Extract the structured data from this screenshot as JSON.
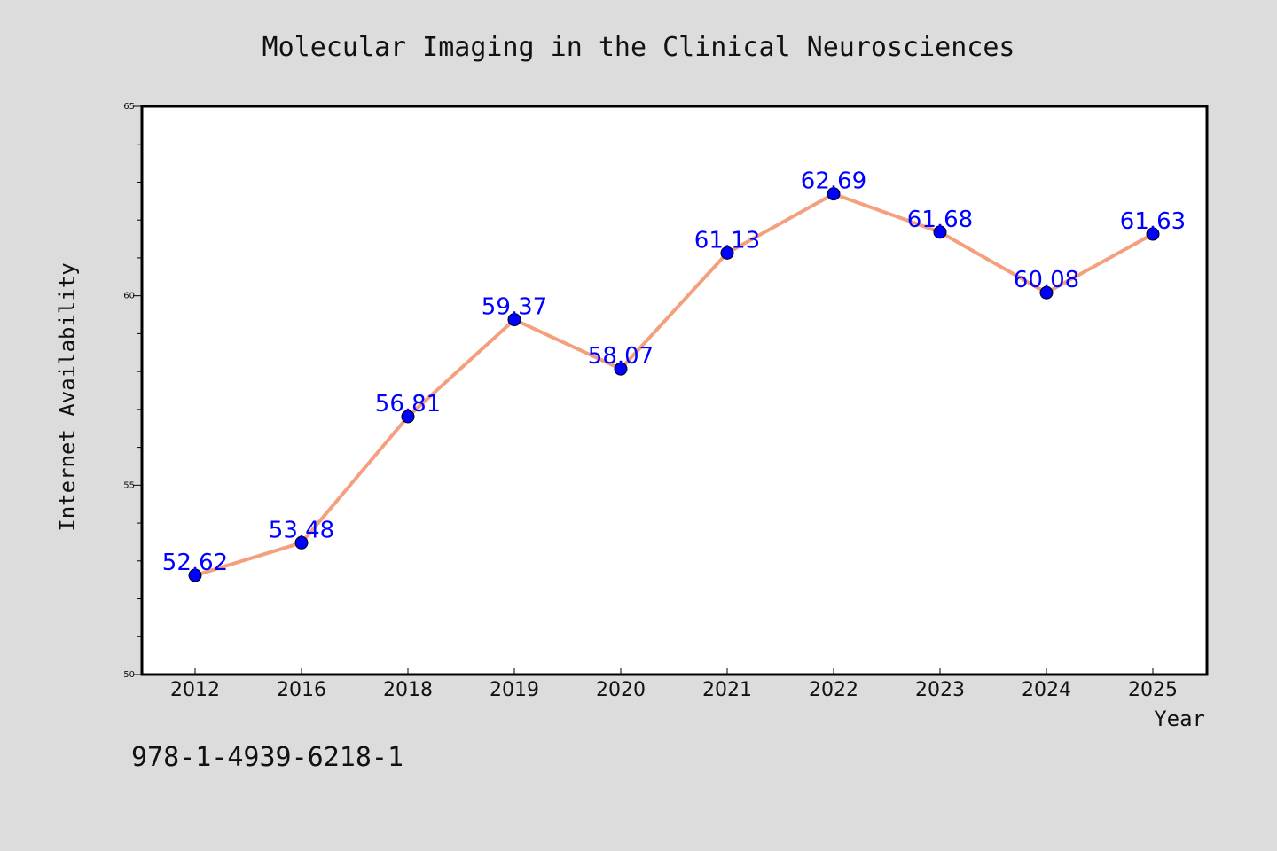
{
  "chart_data": {
    "type": "line",
    "title": "Molecular Imaging in the Clinical Neurosciences",
    "xlabel": "Year",
    "ylabel": "Internet Availability",
    "categories": [
      "2012",
      "2016",
      "2018",
      "2019",
      "2020",
      "2021",
      "2022",
      "2023",
      "2024",
      "2025"
    ],
    "values": [
      52.62,
      53.48,
      56.81,
      59.37,
      58.07,
      61.13,
      62.69,
      61.68,
      60.08,
      61.63
    ],
    "data_labels": [
      "52.62",
      "53.48",
      "56.81",
      "59.37",
      "58.07",
      "61.13",
      "62.69",
      "61.68",
      "60.08",
      "61.63"
    ],
    "ylim": [
      50,
      65
    ],
    "yticks": [
      50,
      55,
      60,
      65
    ],
    "grid": false,
    "legend": "none",
    "line_color": "#f4a07e",
    "marker_color": "#0000ff",
    "label_color": "#0000ff"
  },
  "footer": {
    "isbn": "978-1-4939-6218-1"
  }
}
